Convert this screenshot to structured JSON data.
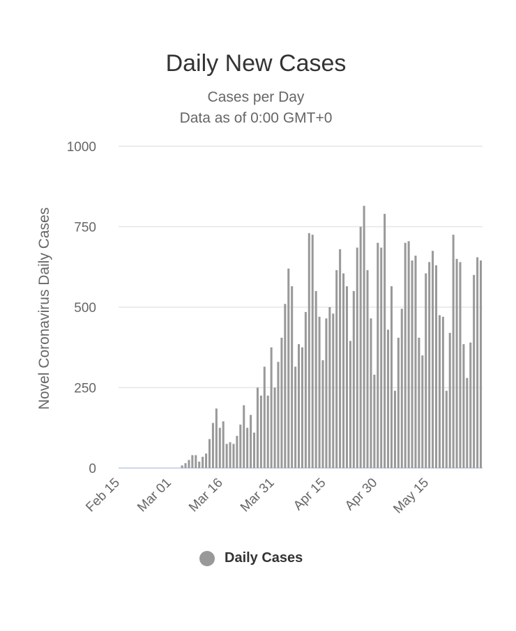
{
  "title": "Daily New Cases",
  "subtitle_lines": [
    "Cases per Day",
    "Data as of 0:00 GMT+0"
  ],
  "legend": {
    "label": "Daily Cases",
    "color": "#999999"
  },
  "colors": {
    "bar": "#999999",
    "grid": "#e6e6e6",
    "axis": "#ccd6eb",
    "text": "#666666"
  },
  "chart_data": {
    "type": "bar",
    "title": "Daily New Cases",
    "subtitle": "Cases per Day / Data as of 0:00 GMT+0",
    "ylabel": "Novel Coronavirus Daily Cases",
    "xlabel": "",
    "ylim": [
      0,
      1000
    ],
    "yticks": [
      0,
      250,
      500,
      750,
      1000
    ],
    "xticks": [
      "Feb 15",
      "Mar 01",
      "Mar 16",
      "Mar 31",
      "Apr 15",
      "Apr 30",
      "May 15"
    ],
    "grid": true,
    "legend_position": "bottom-center",
    "start_date": "Feb 15",
    "series": [
      {
        "name": "Daily Cases",
        "values": [
          0,
          0,
          0,
          0,
          0,
          0,
          0,
          0,
          0,
          0,
          0,
          0,
          0,
          0,
          0,
          0,
          0,
          0,
          8,
          15,
          25,
          40,
          40,
          20,
          35,
          45,
          90,
          140,
          185,
          125,
          145,
          75,
          80,
          75,
          100,
          135,
          195,
          125,
          165,
          110,
          250,
          225,
          315,
          225,
          375,
          250,
          330,
          405,
          510,
          620,
          565,
          315,
          385,
          375,
          485,
          730,
          725,
          550,
          470,
          335,
          465,
          500,
          480,
          615,
          680,
          605,
          565,
          395,
          550,
          685,
          750,
          815,
          615,
          465,
          290,
          700,
          685,
          790,
          430,
          565,
          240,
          405,
          495,
          700,
          705,
          645,
          660,
          405,
          350,
          605,
          640,
          675,
          630,
          475,
          470,
          240,
          420,
          725,
          650,
          640,
          385,
          280,
          390,
          600,
          655,
          645
        ]
      }
    ]
  }
}
